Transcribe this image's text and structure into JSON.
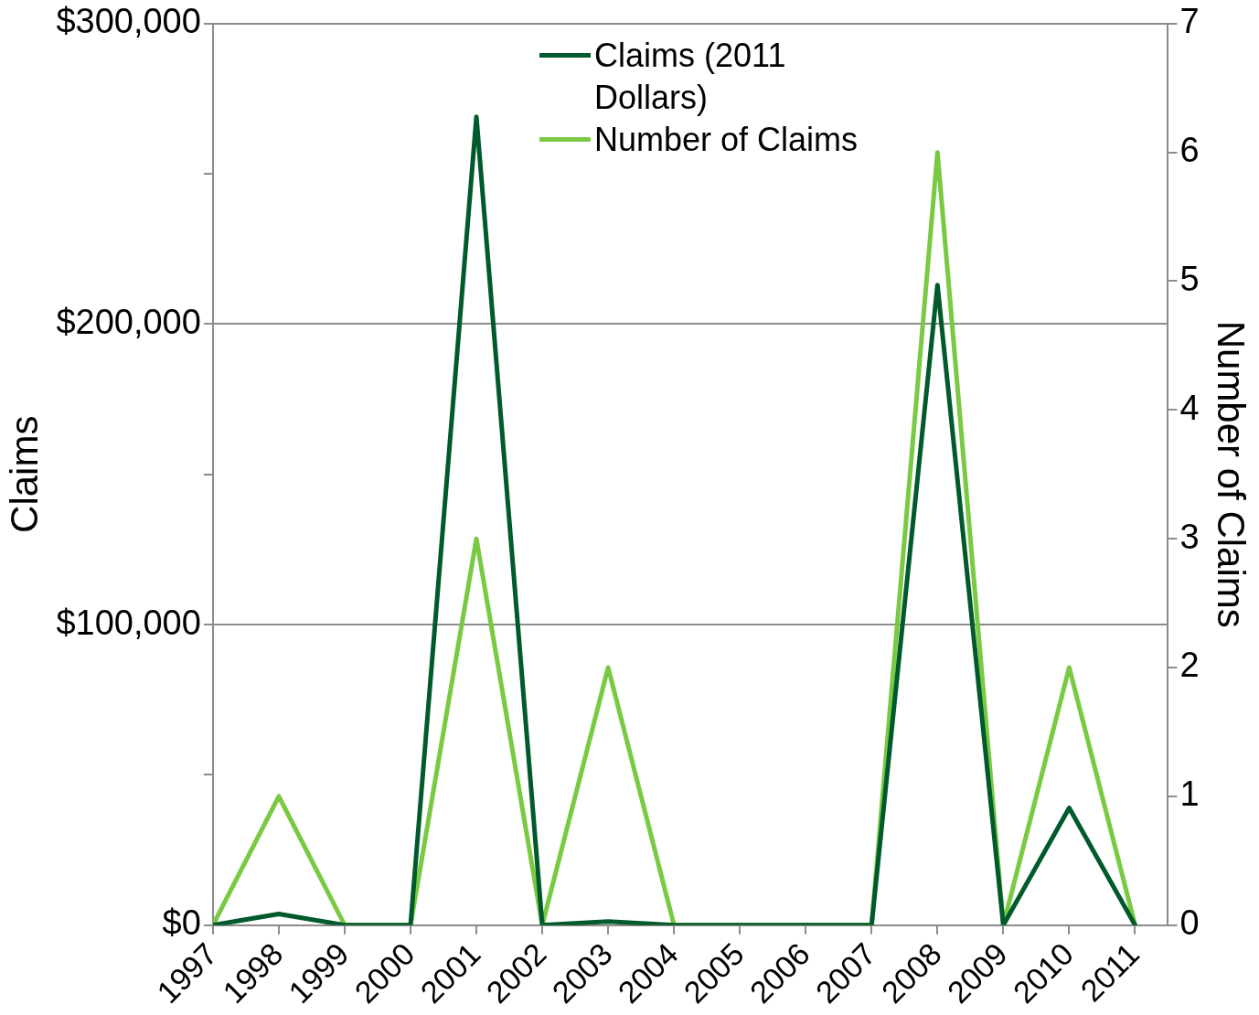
{
  "chart_data": {
    "type": "line",
    "ylabel": "Claims",
    "y2label": "Number of Claims",
    "x": [
      1997,
      1998,
      1999,
      2000,
      2001,
      2002,
      2003,
      2004,
      2005,
      2006,
      2007,
      2008,
      2009,
      2010,
      2011
    ],
    "xlim": [
      1997,
      2011.5
    ],
    "xticks": [
      1997,
      1998,
      1999,
      2000,
      2001,
      2002,
      2003,
      2004,
      2005,
      2006,
      2007,
      2008,
      2009,
      2010,
      2011
    ],
    "ylim": [
      0,
      300000
    ],
    "yticks": [
      {
        "value": 0,
        "label": "$0"
      },
      {
        "value": 50000,
        "label": null
      },
      {
        "value": 100000,
        "label": "$100,000"
      },
      {
        "value": 150000,
        "label": null
      },
      {
        "value": 200000,
        "label": "$200,000"
      },
      {
        "value": 250000,
        "label": null
      },
      {
        "value": 300000,
        "label": "$300,000"
      }
    ],
    "y2lim": [
      0,
      7
    ],
    "y2ticks": [
      0,
      1,
      2,
      3,
      4,
      5,
      6,
      7
    ],
    "grid": "y",
    "legend": "top",
    "marker": "none",
    "line_style": "solid",
    "series": [
      {
        "name": "Claims (2011 Dollars)",
        "color": "#005a2b",
        "values": [
          0,
          3700,
          0,
          0,
          269000,
          0,
          1200,
          0,
          0,
          0,
          0,
          213000,
          0,
          39000,
          0
        ]
      },
      {
        "name": "Number of Claims",
        "color": "#7ac943",
        "axis": "y2",
        "values": [
          0,
          1,
          0,
          0,
          3,
          0,
          2,
          0,
          0,
          0,
          0,
          6,
          0,
          2,
          0
        ]
      }
    ]
  }
}
